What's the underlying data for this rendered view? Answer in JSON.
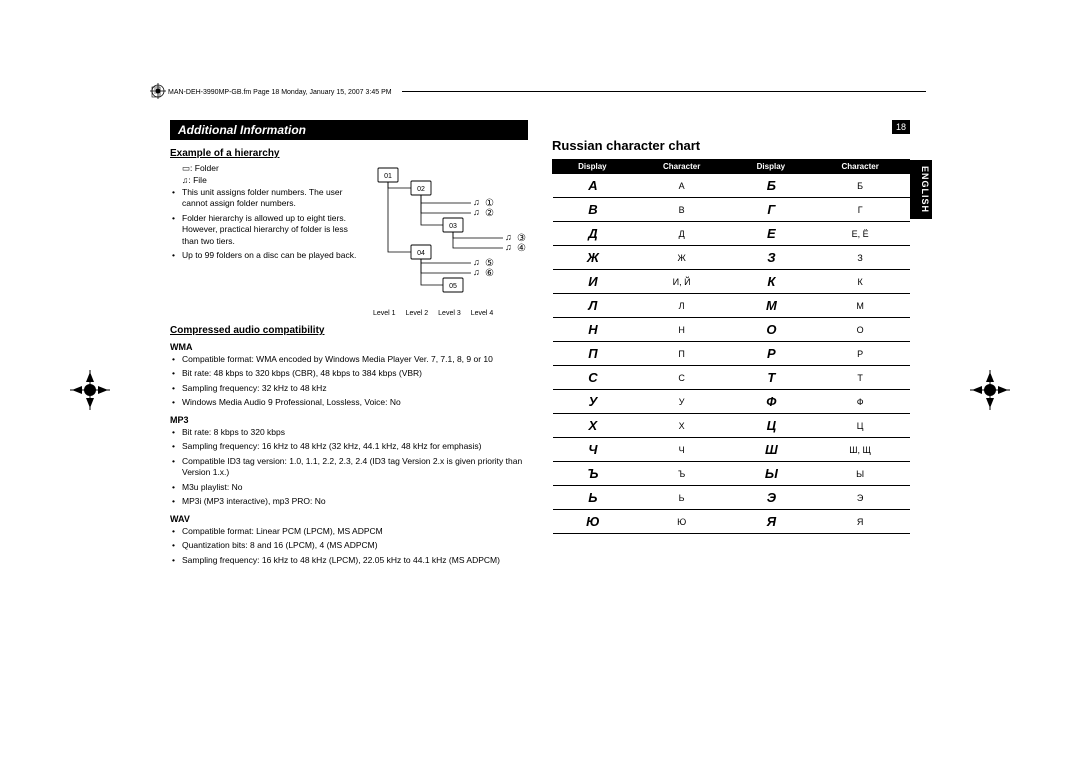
{
  "header_text": "MAN-DEH-3990MP-GB.fm  Page 18  Monday, January 15, 2007  3:45 PM",
  "page_number": "18",
  "side_tab": "ENGLISH",
  "section_title": "Additional Information",
  "left": {
    "hierarchy_heading": "Example of a hierarchy",
    "folder_label": ": Folder",
    "file_label": ": File",
    "hierarchy_notes": [
      "This unit assigns folder numbers. The user cannot assign folder numbers.",
      "Folder hierarchy is allowed up to eight tiers. However, practical hierarchy of folder is less than two tiers.",
      "Up to 99 folders on a disc can be played back."
    ],
    "level_labels": [
      "Level 1",
      "Level 2",
      "Level 3",
      "Level 4"
    ],
    "compressed_heading": "Compressed audio compatibility",
    "wma_heading": "WMA",
    "wma_notes": [
      "Compatible format: WMA encoded by Windows Media Player Ver. 7, 7.1, 8, 9 or 10",
      "Bit rate: 48 kbps to 320 kbps (CBR), 48 kbps to 384 kbps (VBR)",
      "Sampling frequency: 32 kHz to 48 kHz",
      "Windows Media Audio 9 Professional, Lossless, Voice: No"
    ],
    "mp3_heading": "MP3",
    "mp3_notes": [
      "Bit rate: 8 kbps to 320 kbps",
      "Sampling frequency: 16 kHz to 48 kHz (32 kHz, 44.1 kHz, 48 kHz for emphasis)",
      "Compatible ID3 tag version: 1.0, 1.1, 2.2, 2.3, 2.4 (ID3 tag Version 2.x is given priority than Version 1.x.)",
      "M3u playlist: No",
      "MP3i (MP3 interactive), mp3 PRO: No"
    ],
    "wav_heading": "WAV",
    "wav_notes": [
      "Compatible format: Linear PCM (LPCM), MS ADPCM",
      "Quantization bits: 8 and 16 (LPCM), 4 (MS ADPCM)",
      "Sampling frequency: 16 kHz to 48 kHz (LPCM), 22.05 kHz to 44.1 kHz (MS ADPCM)"
    ]
  },
  "right": {
    "title": "Russian character chart",
    "headers": [
      "Display",
      "Character",
      "Display",
      "Character"
    ],
    "rows": [
      {
        "d1": "А",
        "c1": "А",
        "d2": "Б",
        "c2": "Б"
      },
      {
        "d1": "В",
        "c1": "В",
        "d2": "Г",
        "c2": "Г"
      },
      {
        "d1": "Д",
        "c1": "Д",
        "d2": "Е",
        "c2": "Е, Ё"
      },
      {
        "d1": "Ж",
        "c1": "Ж",
        "d2": "З",
        "c2": "З"
      },
      {
        "d1": "И",
        "c1": "И, Й",
        "d2": "К",
        "c2": "К"
      },
      {
        "d1": "Л",
        "c1": "Л",
        "d2": "М",
        "c2": "М"
      },
      {
        "d1": "Н",
        "c1": "Н",
        "d2": "О",
        "c2": "О"
      },
      {
        "d1": "П",
        "c1": "П",
        "d2": "Р",
        "c2": "Р"
      },
      {
        "d1": "С",
        "c1": "С",
        "d2": "Т",
        "c2": "Т"
      },
      {
        "d1": "У",
        "c1": "У",
        "d2": "Ф",
        "c2": "Ф"
      },
      {
        "d1": "Х",
        "c1": "Х",
        "d2": "Ц",
        "c2": "Ц"
      },
      {
        "d1": "Ч",
        "c1": "Ч",
        "d2": "Ш",
        "c2": "Ш, Щ"
      },
      {
        "d1": "Ъ",
        "c1": "Ъ",
        "d2": "Ы",
        "c2": "Ы"
      },
      {
        "d1": "Ь",
        "c1": "Ь",
        "d2": "Э",
        "c2": "Э"
      },
      {
        "d1": "Ю",
        "c1": "Ю",
        "d2": "Я",
        "c2": "Я"
      }
    ]
  },
  "folder_nums": [
    "01",
    "02",
    "03",
    "04",
    "05"
  ],
  "music_nums": [
    "①",
    "②",
    "③",
    "④",
    "⑤",
    "⑥"
  ]
}
